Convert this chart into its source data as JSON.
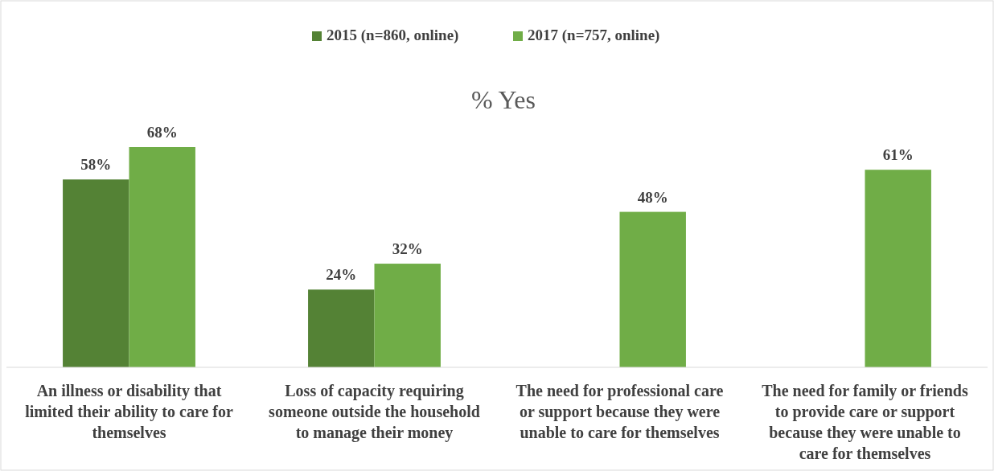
{
  "chart_data": {
    "type": "bar",
    "title": "% Yes",
    "categories": [
      "An illness or disability that limited their ability to care for themselves",
      "Loss of capacity requiring someone outside the household to manage their money",
      "The need for professional care or support because they were unable to care for themselves",
      "The need for family or friends to provide care or support because they were unable to care for themselves"
    ],
    "series": [
      {
        "name": "2015 (n=860, online)",
        "color": "#548235",
        "values": [
          58,
          24,
          null,
          null
        ],
        "value_labels": [
          "58%",
          "24%",
          null,
          null
        ]
      },
      {
        "name": "2017 (n=757, online)",
        "color": "#70ad47",
        "values": [
          68,
          32,
          48,
          61
        ],
        "value_labels": [
          "68%",
          "32%",
          "48%",
          "61%"
        ]
      }
    ],
    "legend": "top"
  }
}
